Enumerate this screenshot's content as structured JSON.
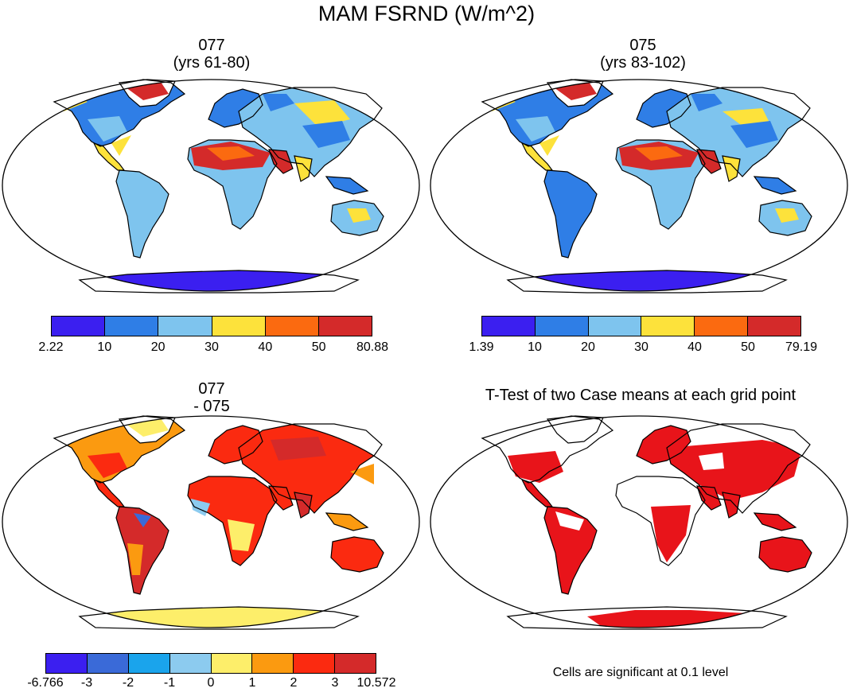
{
  "figure_title": "MAM FSRND (W/m^2)",
  "panels": [
    {
      "id": "tl",
      "title_line1": "077",
      "title_line2": "(yrs 61-80)"
    },
    {
      "id": "tr",
      "title_line1": "075",
      "title_line2": "(yrs 83-102)"
    },
    {
      "id": "bl",
      "title_line1": "077",
      "title_line2": "- 075"
    },
    {
      "id": "br",
      "title_line1": "T-Test of two Case means at each grid point",
      "title_line2": ""
    }
  ],
  "colorbars": {
    "tl": {
      "labels": [
        "2.22",
        "10",
        "20",
        "30",
        "40",
        "50",
        "80.88"
      ],
      "colors": [
        "#3b1ff0",
        "#2f7ee6",
        "#7ec4ee",
        "#fde23b",
        "#fb6a10",
        "#d42a2a"
      ]
    },
    "tr": {
      "labels": [
        "1.39",
        "10",
        "20",
        "30",
        "40",
        "50",
        "79.19"
      ],
      "colors": [
        "#3b1ff0",
        "#2f7ee6",
        "#7ec4ee",
        "#fde23b",
        "#fb6a10",
        "#d42a2a"
      ]
    },
    "bl": {
      "labels": [
        "-6.766",
        "-3",
        "-2",
        "-1",
        "0",
        "1",
        "2",
        "3",
        "10.572"
      ],
      "colors": [
        "#3b1ff0",
        "#3a6ad8",
        "#1aa4ec",
        "#8ccbef",
        "#fdee6a",
        "#fb9a10",
        "#fb2a10",
        "#d42a2a"
      ]
    }
  },
  "significance_note": "Cells are significant at 0.1 level",
  "significance_color": "#e8141a"
}
